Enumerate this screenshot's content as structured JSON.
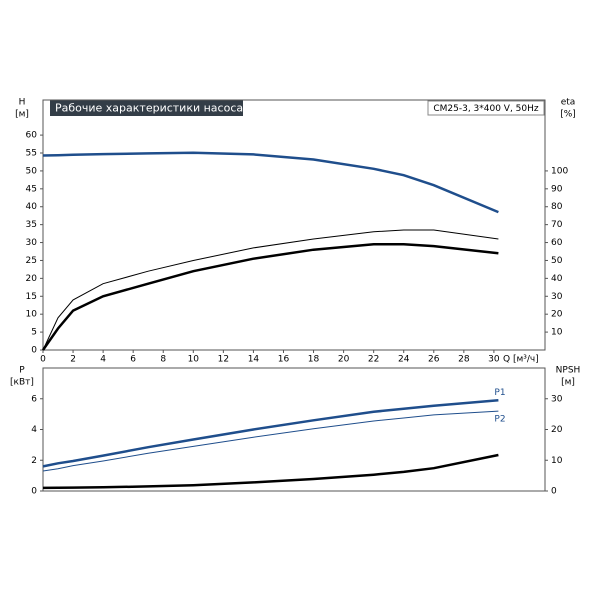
{
  "chart_data": [
    {
      "type": "line",
      "title": "Рабочие характеристики насоса",
      "subtitle": "CM25-3, 3*400 V, 50Hz",
      "y_label": "H",
      "y_unit": "[м]",
      "y2_label": "eta",
      "y2_unit": "[%]",
      "x_label": "Q [м³/ч]",
      "x": [
        0,
        1,
        2,
        4,
        7,
        10,
        14,
        18,
        22,
        24,
        26,
        30.3
      ],
      "series": [
        {
          "color": "#1f4e8c",
          "width": 2.5,
          "values": [
            54.3,
            54.4,
            54.5,
            54.7,
            54.9,
            55.1,
            54.6,
            53.2,
            50.6,
            48.8,
            46,
            38.5
          ]
        },
        {
          "color": "#000000",
          "width": 1,
          "axis": "y2",
          "values": [
            0,
            18,
            28,
            37,
            44,
            50,
            57,
            62,
            66,
            67,
            67,
            62
          ]
        },
        {
          "color": "#000000",
          "width": 2.5,
          "axis": "y2",
          "values": [
            0,
            12,
            22,
            30,
            37,
            44,
            51,
            56,
            59,
            59,
            58,
            54
          ]
        }
      ],
      "xlim": [
        0,
        33.4
      ],
      "xticks": [
        0,
        2,
        4,
        6,
        8,
        10,
        12,
        14,
        16,
        18,
        20,
        22,
        24,
        26,
        28,
        30
      ],
      "ylim": [
        0,
        69.8
      ],
      "yticks": [
        0,
        5,
        10,
        15,
        20,
        25,
        30,
        35,
        40,
        45,
        50,
        55,
        60
      ],
      "y2lim": [
        0,
        139.6
      ],
      "y2ticks": [
        10,
        20,
        30,
        40,
        50,
        60,
        70,
        80,
        90,
        100
      ],
      "grid": false
    },
    {
      "type": "line",
      "y_label": "P",
      "y_unit": "[кВт]",
      "y2_label": "NPSH",
      "y2_unit": "[м]",
      "x": [
        0,
        1,
        2,
        4,
        7,
        10,
        14,
        18,
        22,
        24,
        26,
        30.3
      ],
      "series": [
        {
          "name": "P1",
          "color": "#1f4e8c",
          "width": 2.5,
          "values": [
            1.6,
            1.8,
            1.95,
            2.3,
            2.85,
            3.35,
            4.0,
            4.6,
            5.15,
            5.35,
            5.55,
            5.9
          ]
        },
        {
          "name": "P2",
          "color": "#1f4e8c",
          "width": 1,
          "values": [
            1.3,
            1.45,
            1.65,
            1.95,
            2.45,
            2.9,
            3.5,
            4.05,
            4.55,
            4.75,
            4.95,
            5.2
          ]
        },
        {
          "color": "#000000",
          "width": 2.5,
          "axis": "y2",
          "values": [
            1.0,
            1.05,
            1.1,
            1.2,
            1.5,
            1.9,
            2.8,
            3.9,
            5.3,
            6.2,
            7.4,
            11.7
          ]
        }
      ],
      "xlim": [
        0,
        33.4
      ],
      "ylim": [
        0,
        8
      ],
      "yticks": [
        0,
        2,
        4,
        6
      ],
      "y2lim": [
        0,
        40
      ],
      "y2ticks": [
        0,
        10,
        20,
        30
      ],
      "grid": false
    }
  ]
}
